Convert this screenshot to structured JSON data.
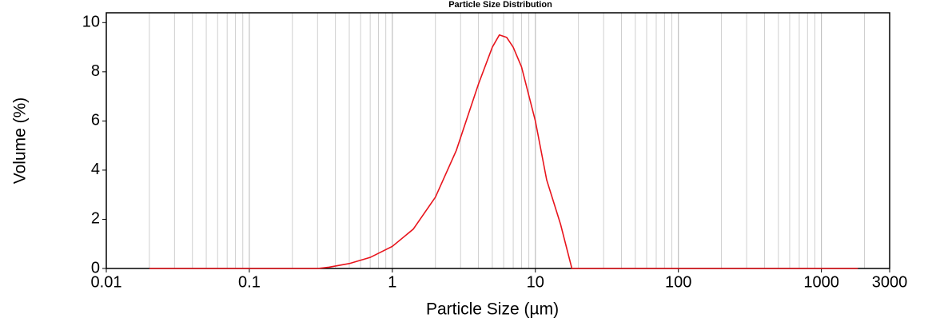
{
  "chart_data": {
    "type": "line",
    "title": "Particle Size Distribution",
    "x_label": "Particle Size (µm)",
    "y_label": "Volume (%)",
    "x_scale": "log",
    "grid": "x",
    "xlim": [
      0.01,
      3000
    ],
    "xticks": [
      0.01,
      0.1,
      1,
      10,
      100,
      1000,
      3000
    ],
    "ylim": [
      0,
      10.4
    ],
    "yticks": [
      0,
      2,
      4,
      6,
      8,
      10
    ],
    "x": [
      0.02,
      0.3,
      0.36,
      0.5,
      0.7,
      1,
      1.4,
      2,
      2.8,
      4,
      5,
      5.6,
      6.3,
      7,
      8,
      10,
      12,
      15,
      18,
      1800
    ],
    "series": [
      {
        "color": "#e8141c",
        "values": [
          0,
          0,
          0.05,
          0.2,
          0.45,
          0.9,
          1.6,
          2.9,
          4.8,
          7.5,
          9.0,
          9.5,
          9.4,
          9.0,
          8.2,
          6.0,
          3.6,
          1.8,
          0,
          0
        ]
      }
    ]
  }
}
